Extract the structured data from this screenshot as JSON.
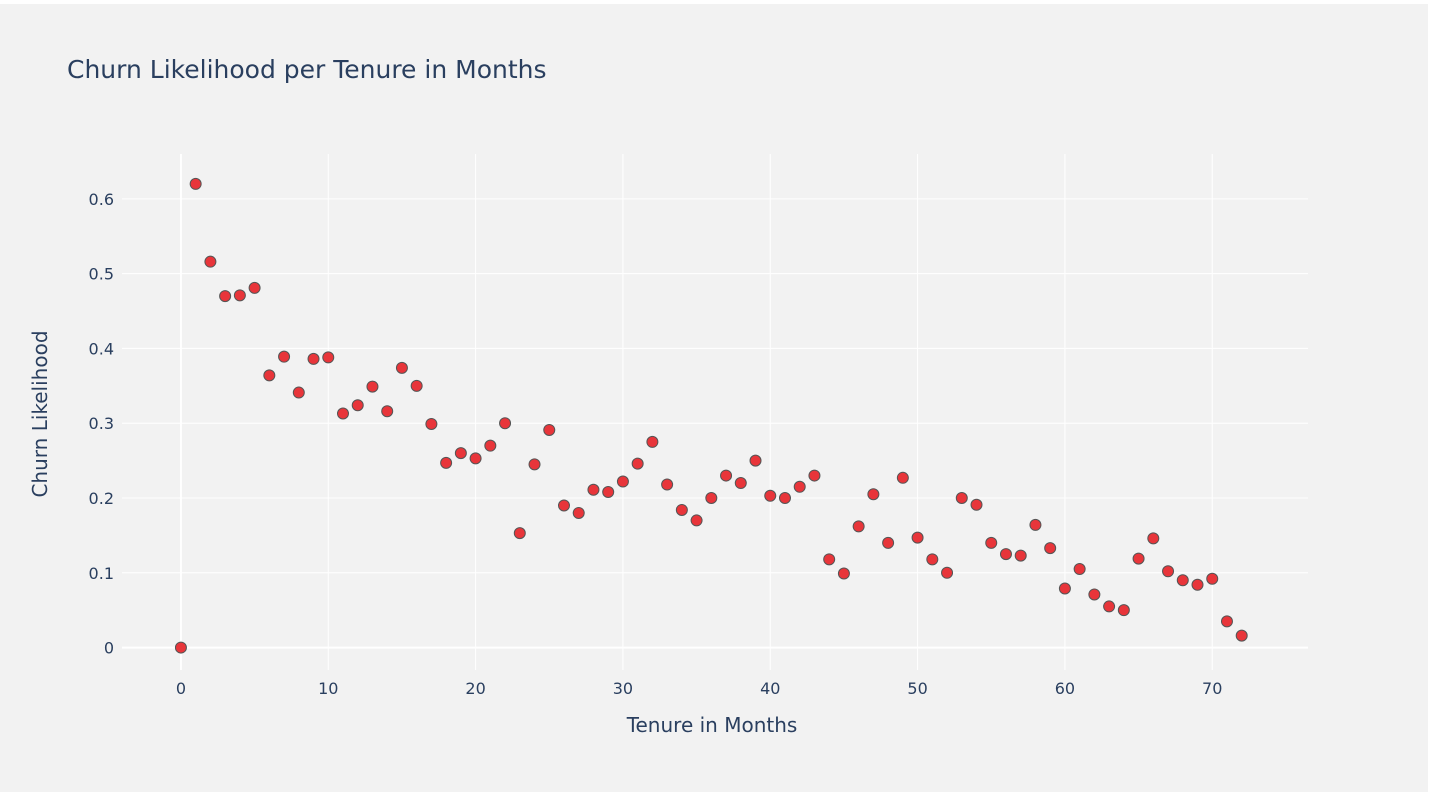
{
  "colors": {
    "background": "#f2f2f2",
    "grid": "#ffffff",
    "text": "#2a3f5f",
    "marker_fill": "#e8353a",
    "marker_line": "#555555"
  },
  "chart_data": {
    "type": "scatter",
    "title": "Churn Likelihood per Tenure in Months",
    "xlabel": "Tenure in Months",
    "ylabel": "Churn Likelihood",
    "xlim": [
      -4,
      76.5
    ],
    "ylim": [
      -0.03,
      0.66
    ],
    "grid": true,
    "legend": "none",
    "x_ticks": [
      {
        "value": 0,
        "label": "0"
      },
      {
        "value": 10,
        "label": "10"
      },
      {
        "value": 20,
        "label": "20"
      },
      {
        "value": 30,
        "label": "30"
      },
      {
        "value": 40,
        "label": "40"
      },
      {
        "value": 50,
        "label": "50"
      },
      {
        "value": 60,
        "label": "60"
      },
      {
        "value": 70,
        "label": "70"
      }
    ],
    "y_ticks": [
      {
        "value": 0,
        "label": "0"
      },
      {
        "value": 0.1,
        "label": "0.1"
      },
      {
        "value": 0.2,
        "label": "0.2"
      },
      {
        "value": 0.3,
        "label": "0.3"
      },
      {
        "value": 0.4,
        "label": "0.4"
      },
      {
        "value": 0.5,
        "label": "0.5"
      },
      {
        "value": 0.6,
        "label": "0.6"
      }
    ],
    "series": [
      {
        "x": [
          0,
          1,
          2,
          3,
          4,
          5,
          6,
          7,
          8,
          9,
          10,
          11,
          12,
          13,
          14,
          15,
          16,
          17,
          18,
          19,
          20,
          21,
          22,
          23,
          24,
          25,
          26,
          27,
          28,
          29,
          30,
          31,
          32,
          33,
          34,
          35,
          36,
          37,
          38,
          39,
          40,
          41,
          42,
          43,
          44,
          45,
          46,
          47,
          48,
          49,
          50,
          51,
          52,
          53,
          54,
          55,
          56,
          57,
          58,
          59,
          60,
          61,
          62,
          63,
          64,
          65,
          66,
          67,
          68,
          69,
          70,
          71,
          72
        ],
        "y": [
          0.0,
          0.62,
          0.516,
          0.47,
          0.471,
          0.481,
          0.364,
          0.389,
          0.341,
          0.386,
          0.388,
          0.313,
          0.324,
          0.349,
          0.316,
          0.374,
          0.35,
          0.299,
          0.247,
          0.26,
          0.253,
          0.27,
          0.3,
          0.153,
          0.245,
          0.291,
          0.19,
          0.18,
          0.211,
          0.208,
          0.222,
          0.246,
          0.275,
          0.218,
          0.184,
          0.17,
          0.2,
          0.23,
          0.22,
          0.25,
          0.203,
          0.2,
          0.215,
          0.23,
          0.118,
          0.099,
          0.162,
          0.205,
          0.14,
          0.227,
          0.147,
          0.118,
          0.1,
          0.2,
          0.191,
          0.14,
          0.125,
          0.123,
          0.164,
          0.133,
          0.079,
          0.105,
          0.071,
          0.055,
          0.05,
          0.119,
          0.146,
          0.102,
          0.09,
          0.084,
          0.092,
          0.035,
          0.016
        ]
      }
    ]
  }
}
